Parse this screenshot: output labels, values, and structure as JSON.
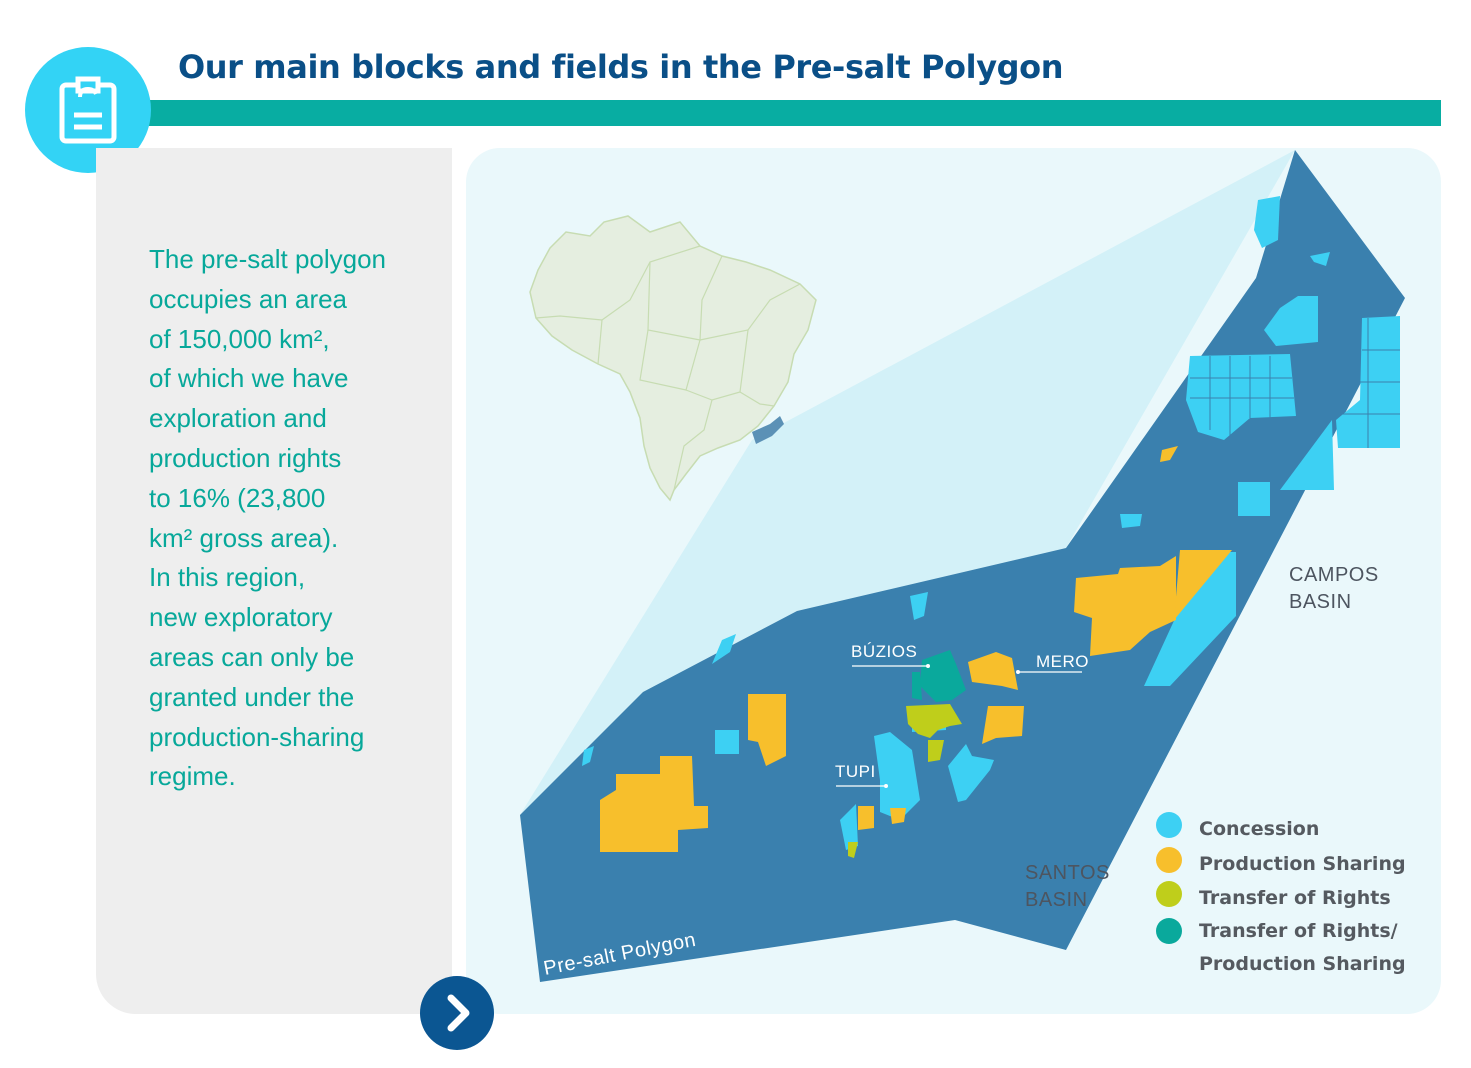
{
  "header": {
    "title": "Our main blocks and fields in the Pre-salt Polygon",
    "badge_icon": "clipboard-icon"
  },
  "sidebar": {
    "lines": [
      "The pre-salt polygon",
      "occupies an area",
      "of 150,000 km²,",
      "of which we have",
      "exploration and",
      "production rights",
      "to 16% (23,800",
      "km² gross area).",
      "In this region,",
      "new exploratory",
      "areas can only be",
      "granted under the",
      "production-sharing",
      "regime."
    ]
  },
  "map": {
    "polygon_label": "Pre-salt Polygon",
    "basins": {
      "campos": [
        "CAMPOS",
        "BASIN"
      ],
      "santos": [
        "SANTOS",
        "BASIN"
      ]
    },
    "fields": {
      "buzios": "BÚZIOS",
      "mero": "MERO",
      "tupi": "TUPI"
    },
    "legend": [
      {
        "label": "Concession",
        "color": "#3dd0f3"
      },
      {
        "label": "Production Sharing",
        "color": "#f7bf2c"
      },
      {
        "label": "Transfer of Rights",
        "color": "#bfce1b"
      },
      {
        "label": "Transfer of Rights/",
        "color": "#0aa99c"
      },
      {
        "label": "Production Sharing",
        "color": null
      }
    ]
  },
  "colors": {
    "accent_bar": "#08ada2",
    "title": "#0a4f87",
    "polygon": "#3a80ae",
    "concession": "#3dd0f3",
    "production_sharing": "#f7bf2c",
    "transfer_of_rights": "#bfce1b",
    "transfer_production_sharing": "#0aa99c"
  },
  "navigation": {
    "next_icon": "chevron-right-icon"
  }
}
